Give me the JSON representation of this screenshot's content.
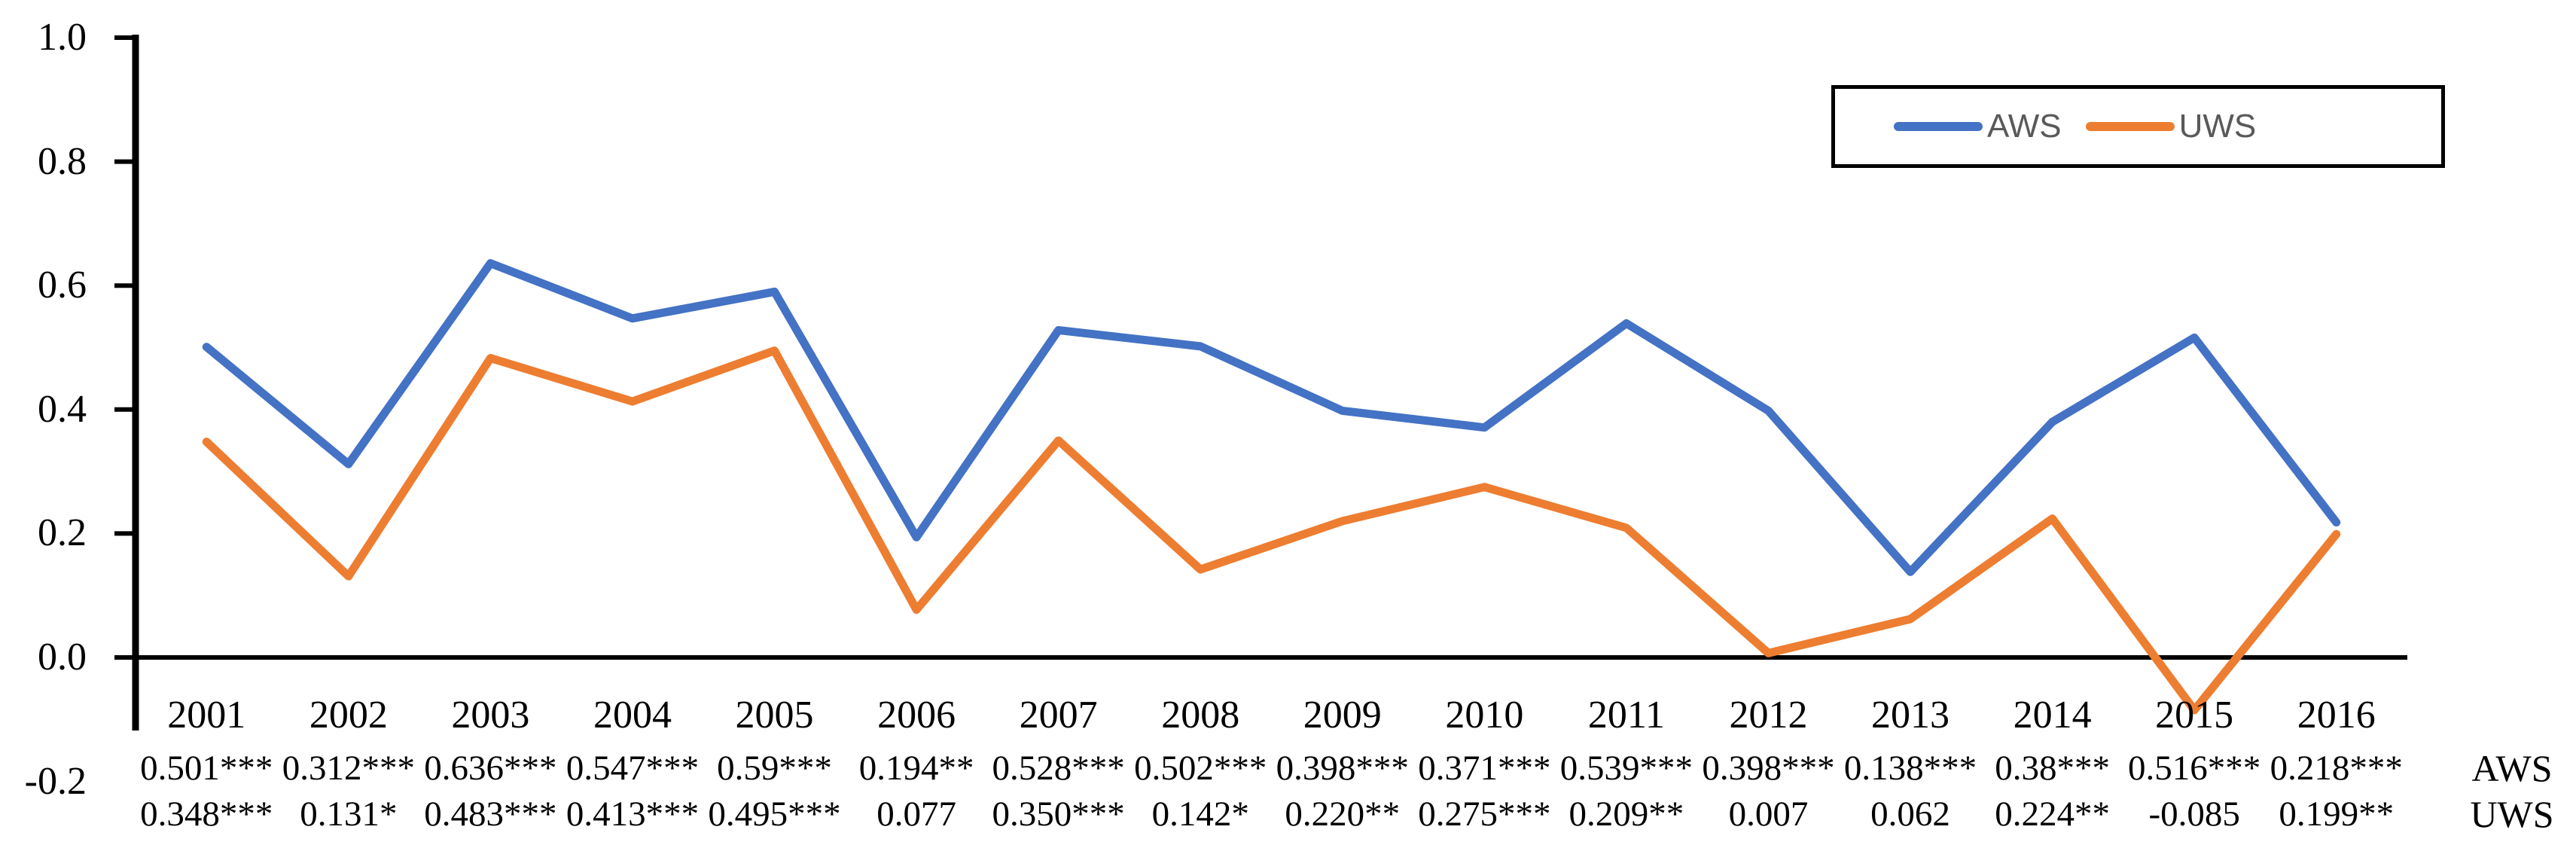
{
  "chart_data": {
    "type": "line",
    "x": [
      "2001",
      "2002",
      "2003",
      "2004",
      "2005",
      "2006",
      "2007",
      "2008",
      "2009",
      "2010",
      "2011",
      "2012",
      "2013",
      "2014",
      "2015",
      "2016"
    ],
    "series": [
      {
        "name": "AWS",
        "color": "#4472C4",
        "values": [
          0.501,
          0.312,
          0.636,
          0.547,
          0.59,
          0.194,
          0.528,
          0.502,
          0.398,
          0.371,
          0.539,
          0.398,
          0.138,
          0.38,
          0.516,
          0.218
        ]
      },
      {
        "name": "UWS",
        "color": "#ED7D31",
        "values": [
          0.348,
          0.131,
          0.483,
          0.413,
          0.495,
          0.077,
          0.35,
          0.142,
          0.22,
          0.275,
          0.209,
          0.007,
          0.062,
          0.224,
          -0.085,
          0.199
        ]
      }
    ],
    "title": "",
    "xlabel": "",
    "ylabel": "",
    "ylim": [
      -0.2,
      1.0
    ],
    "yticks": [
      1.0,
      0.8,
      0.6,
      0.4,
      0.2,
      0.0,
      -0.2
    ],
    "ytick_labels": [
      "1.0",
      "0.8",
      "0.6",
      "0.4",
      "0.2",
      "0.0",
      "-0.2"
    ],
    "grid": false,
    "legend_position": "top-right"
  },
  "value_table": {
    "rows": [
      {
        "label": "AWS",
        "cells": [
          "0.501***",
          "0.312***",
          "0.636***",
          "0.547***",
          "0.59***",
          "0.194**",
          "0.528***",
          "0.502***",
          "0.398***",
          "0.371***",
          "0.539***",
          "0.398***",
          "0.138***",
          "0.38***",
          "0.516***",
          "0.218***"
        ]
      },
      {
        "label": "UWS",
        "cells": [
          "0.348***",
          "0.131*",
          "0.483***",
          "0.413***",
          "0.495***",
          "0.077",
          "0.350***",
          "0.142*",
          "0.220**",
          "0.275***",
          "0.209**",
          "0.007",
          "0.062",
          "0.224**",
          "-0.085",
          "0.199**"
        ]
      }
    ]
  },
  "legend": {
    "items": [
      {
        "label": "AWS",
        "color": "#4472C4"
      },
      {
        "label": "UWS",
        "color": "#ED7D31"
      }
    ]
  },
  "colors": {
    "axis": "#000000",
    "legend_text": "#595959",
    "background": "#FFFFFF"
  }
}
